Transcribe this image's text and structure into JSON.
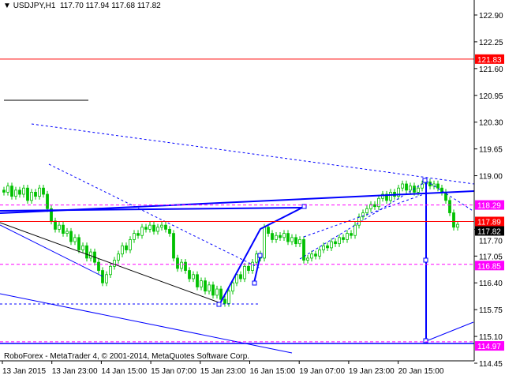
{
  "header": {
    "symbol": "USDJPY,H1",
    "ohlc": "117.70 117.94 117.68 117.82",
    "menu_icon": "triangle-down-icon"
  },
  "footer": {
    "copyright": "RoboForex - MetaTrader 4, © 2001-2014, MetaQuotes Software Corp."
  },
  "chart_data": {
    "type": "candlestick",
    "symbol": "USDJPY",
    "timeframe": "H1",
    "ylim": [
      114.45,
      122.9
    ],
    "y_ticks": [
      "122.90",
      "122.25",
      "121.60",
      "120.95",
      "120.30",
      "119.65",
      "119.00",
      "117.70",
      "117.05",
      "116.40",
      "115.75",
      "115.10",
      "114.45"
    ],
    "x_ticks": [
      "13 Jan 2015",
      "13 Jan 23:00",
      "14 Jan 15:00",
      "15 Jan 07:00",
      "15 Jan 23:00",
      "16 Jan 15:00",
      "19 Jan 07:00",
      "19 Jan 23:00",
      "20 Jan 15:00"
    ],
    "closes": [
      118.6,
      118.75,
      118.5,
      118.65,
      118.55,
      118.7,
      118.4,
      118.6,
      118.5,
      118.7,
      118.55,
      118.2,
      117.9,
      117.7,
      117.8,
      117.6,
      117.65,
      117.4,
      117.5,
      117.2,
      117.3,
      117.0,
      117.15,
      116.9,
      116.7,
      116.4,
      116.6,
      116.8,
      116.95,
      117.1,
      117.3,
      117.2,
      117.45,
      117.6,
      117.55,
      117.75,
      117.7,
      117.8,
      117.65,
      117.75,
      117.8,
      117.7,
      117.6,
      117.0,
      116.75,
      116.9,
      116.7,
      116.5,
      116.6,
      116.3,
      116.45,
      116.2,
      116.35,
      116.1,
      116.25,
      116.0,
      115.9,
      116.2,
      116.4,
      116.6,
      116.5,
      116.8,
      116.7,
      116.9,
      117.1,
      117.0,
      117.75,
      117.6,
      117.45,
      117.55,
      117.5,
      117.6,
      117.4,
      117.5,
      117.35,
      117.45,
      116.95,
      117.0,
      117.1,
      117.05,
      117.2,
      117.3,
      117.25,
      117.4,
      117.35,
      117.5,
      117.45,
      117.6,
      117.55,
      117.8,
      118.0,
      118.1,
      118.2,
      118.3,
      118.25,
      118.45,
      118.55,
      118.4,
      118.6,
      118.5,
      118.7,
      118.8,
      118.65,
      118.75,
      118.6,
      118.7,
      118.8,
      118.85,
      118.75,
      118.8,
      118.7,
      118.6,
      118.4,
      118.1,
      117.75,
      117.82
    ],
    "current_price": "117.82",
    "levels": [
      {
        "price": "121.83",
        "color": "#ff0000",
        "style": "solid"
      },
      {
        "price": "118.29",
        "color": "#ff00ff",
        "style": "dashed"
      },
      {
        "price": "117.89",
        "color": "#ff0000",
        "style": "solid"
      },
      {
        "price": "116.85",
        "color": "#ff00ff",
        "style": "dashed"
      },
      {
        "price": "114.97",
        "color": "#ff00ff",
        "style": "dashed"
      }
    ],
    "colors": {
      "candle": "#00c000",
      "trend": "#0000ff",
      "axis": "#000000"
    }
  }
}
